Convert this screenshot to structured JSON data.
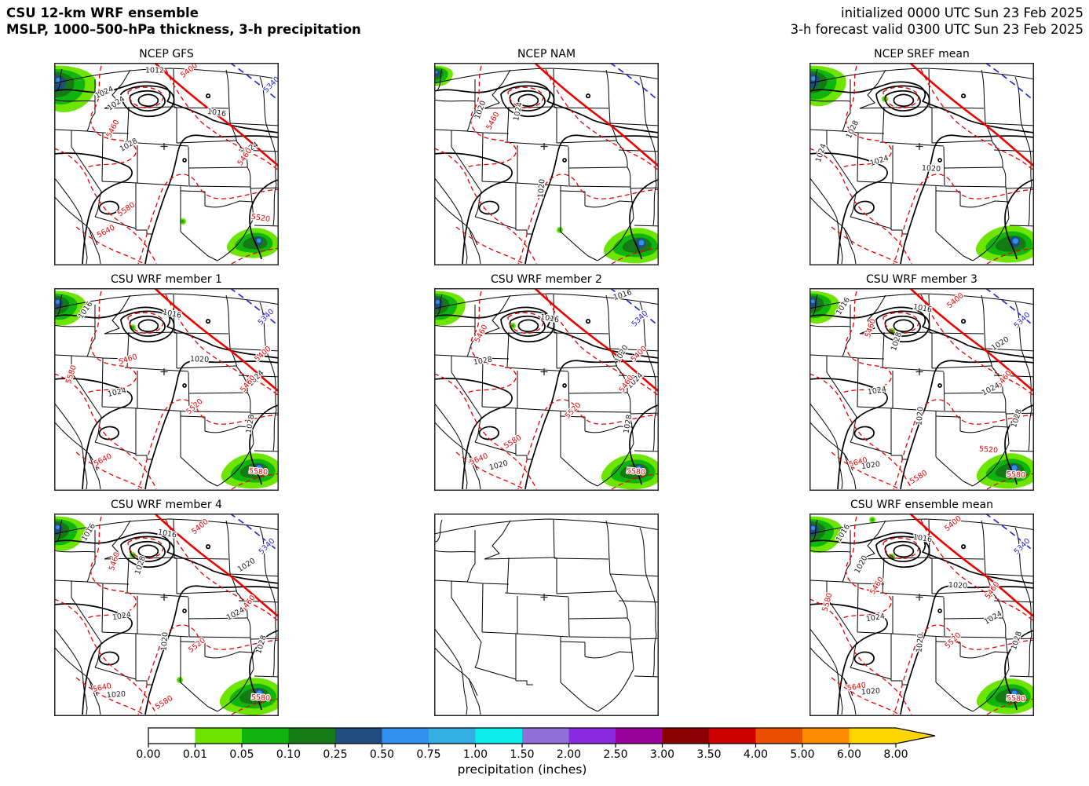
{
  "header": {
    "title_line1": "CSU 12-km WRF ensemble",
    "title_line2": "MSLP, 1000–500-hPa thickness, 3-h precipitation",
    "init_line": "initialized 0000 UTC Sun 23 Feb 2025",
    "valid_line": "3-h forecast valid 0300 UTC Sun 23 Feb 2025"
  },
  "label_colors": {
    "k": "#1a1a1a",
    "r": "#ee0000",
    "b": "#2222dd"
  },
  "panels": [
    {
      "id": "ncep-gfs",
      "title": "NCEP GFS",
      "blank": false,
      "precip": {
        "nw": 1.15,
        "se": 0.85,
        "se_pos": [
          254,
          228
        ],
        "specks": [
          [
            164,
            202
          ]
        ]
      },
      "labels": [
        [
          "1012",
          128,
          10,
          "k",
          0
        ],
        [
          "5400",
          172,
          10,
          "r",
          -38
        ],
        [
          "5340",
          277,
          28,
          "b",
          -45
        ],
        [
          "1024",
          64,
          38,
          "k",
          -25
        ],
        [
          "1024",
          79,
          52,
          "k",
          -35
        ],
        [
          "1016",
          207,
          64,
          "k",
          8
        ],
        [
          "5460",
          75,
          84,
          "r",
          -62
        ],
        [
          "1028",
          95,
          105,
          "k",
          -30
        ],
        [
          "1024",
          249,
          110,
          "k",
          -32
        ],
        [
          "5460",
          243,
          120,
          "r",
          -55
        ],
        [
          "5580",
          92,
          187,
          "r",
          -35
        ],
        [
          "5520",
          263,
          198,
          "r",
          8
        ],
        [
          "5640",
          66,
          215,
          "r",
          -28
        ]
      ]
    },
    {
      "id": "ncep-nam",
      "title": "NCEP NAM",
      "blank": false,
      "precip": {
        "nw": 0.5,
        "se": 1.0,
        "se_pos": [
          256,
          231
        ],
        "specks": [
          [
            160,
            213
          ]
        ]
      },
      "labels": [
        [
          "1020",
          59,
          60,
          "k",
          -70
        ],
        [
          "5460",
          75,
          74,
          "r",
          -62
        ],
        [
          "1024",
          107,
          62,
          "k",
          -78
        ],
        [
          "1020",
          137,
          160,
          "k",
          -85
        ]
      ]
    },
    {
      "id": "ncep-sref",
      "title": "NCEP SREF mean",
      "blank": false,
      "precip": {
        "nw": 1.0,
        "se": 1.05,
        "se_pos": [
          254,
          229
        ],
        "specks": [
          [
            96,
            46
          ]
        ]
      },
      "labels": [
        [
          "1028",
          55,
          85,
          "k",
          -65
        ],
        [
          "1024",
          15,
          115,
          "k",
          -72
        ],
        [
          "1024",
          89,
          125,
          "k",
          -18
        ],
        [
          "1020",
          155,
          135,
          "k",
          3
        ]
      ]
    },
    {
      "id": "csu-wrf-1",
      "title": "CSU WRF member 1",
      "blank": false,
      "precip": {
        "nw": 0.85,
        "se": 1.0,
        "se_pos": [
          253,
          231
        ],
        "specks": [
          [
            100,
            50
          ]
        ]
      },
      "labels": [
        [
          "1016",
          40,
          28,
          "k",
          -55
        ],
        [
          "1016",
          150,
          33,
          "k",
          12
        ],
        [
          "5340",
          270,
          37,
          "b",
          -45
        ],
        [
          "5400",
          266,
          84,
          "r",
          -42
        ],
        [
          "1020",
          185,
          91,
          "k",
          2
        ],
        [
          "5460",
          94,
          91,
          "r",
          -18
        ],
        [
          "5580",
          22,
          110,
          "r",
          -72
        ],
        [
          "1024",
          257,
          115,
          "k",
          -45
        ],
        [
          "5460",
          247,
          122,
          "r",
          -52
        ],
        [
          "1024",
          80,
          133,
          "k",
          -12
        ],
        [
          "5520",
          179,
          151,
          "r",
          -42
        ],
        [
          "1028",
          250,
          173,
          "k",
          -80
        ],
        [
          "5640",
          62,
          219,
          "r",
          -28
        ],
        [
          "5580",
          260,
          234,
          "r",
          5
        ]
      ]
    },
    {
      "id": "csu-wrf-2",
      "title": "CSU WRF member 2",
      "blank": false,
      "precip": {
        "nw": 0.85,
        "se": 1.0,
        "se_pos": [
          253,
          232
        ],
        "specks": [
          [
            100,
            48
          ]
        ]
      },
      "labels": [
        [
          "1016",
          240,
          9,
          "k",
          -18
        ],
        [
          "1016",
          147,
          39,
          "k",
          10
        ],
        [
          "5340",
          262,
          39,
          "b",
          -45
        ],
        [
          "5460",
          60,
          58,
          "r",
          -62
        ],
        [
          "1028",
          62,
          93,
          "k",
          -10
        ],
        [
          "1020",
          239,
          84,
          "k",
          -60
        ],
        [
          "5400",
          261,
          84,
          "r",
          -45
        ],
        [
          "1024",
          256,
          118,
          "k",
          -45
        ],
        [
          "5460",
          245,
          122,
          "r",
          -55
        ],
        [
          "5520",
          177,
          156,
          "r",
          -45
        ],
        [
          "1028",
          247,
          173,
          "k",
          -80
        ],
        [
          "5580",
          100,
          196,
          "r",
          -32
        ],
        [
          "5640",
          57,
          218,
          "r",
          -22
        ],
        [
          "1020",
          82,
          226,
          "k",
          -15
        ],
        [
          "5580",
          257,
          234,
          "r",
          5
        ]
      ]
    },
    {
      "id": "csu-wrf-3",
      "title": "CSU WRF member 3",
      "blank": false,
      "precip": {
        "nw": 0.8,
        "se": 1.0,
        "se_pos": [
          253,
          231
        ],
        "specks": [
          [
            105,
            55
          ]
        ]
      },
      "labels": [
        [
          "1016",
          43,
          23,
          "k",
          -58
        ],
        [
          "1016",
          144,
          26,
          "k",
          10
        ],
        [
          "5400",
          186,
          16,
          "r",
          -40
        ],
        [
          "5340",
          271,
          41,
          "b",
          -45
        ],
        [
          "5460",
          78,
          51,
          "r",
          -72
        ],
        [
          "1028",
          111,
          68,
          "k",
          -72
        ],
        [
          "1020",
          243,
          71,
          "k",
          -32
        ],
        [
          "5460",
          248,
          116,
          "r",
          -52
        ],
        [
          "1024",
          86,
          131,
          "k",
          -10
        ],
        [
          "1024",
          231,
          129,
          "k",
          -28
        ],
        [
          "1020",
          141,
          163,
          "k",
          -85
        ],
        [
          "1028",
          264,
          166,
          "k",
          -72
        ],
        [
          "5520",
          228,
          206,
          "r",
          5
        ],
        [
          "5640",
          62,
          222,
          "r",
          -15
        ],
        [
          "1020",
          78,
          226,
          "k",
          -8
        ],
        [
          "5580",
          139,
          241,
          "r",
          -32
        ],
        [
          "5580",
          263,
          238,
          "r",
          3
        ]
      ]
    },
    {
      "id": "csu-wrf-4",
      "title": "CSU WRF member 4",
      "blank": false,
      "precip": {
        "nw": 0.85,
        "se": 1.05,
        "se_pos": [
          253,
          231
        ],
        "specks": [
          [
            100,
            53
          ],
          [
            160,
            212
          ]
        ]
      },
      "labels": [
        [
          "1016",
          44,
          24,
          "k",
          -58
        ],
        [
          "1016",
          144,
          26,
          "k",
          10
        ],
        [
          "5400",
          186,
          17,
          "r",
          -40
        ],
        [
          "5340",
          271,
          42,
          "b",
          -45
        ],
        [
          "5460",
          77,
          61,
          "r",
          -72
        ],
        [
          "1028",
          110,
          66,
          "k",
          -72
        ],
        [
          "1020",
          245,
          66,
          "k",
          -32
        ],
        [
          "5460",
          247,
          115,
          "r",
          -52
        ],
        [
          "1024",
          86,
          131,
          "k",
          -10
        ],
        [
          "1024",
          231,
          128,
          "k",
          -28
        ],
        [
          "1020",
          141,
          163,
          "k",
          -85
        ],
        [
          "1028",
          264,
          167,
          "k",
          -72
        ],
        [
          "5520",
          182,
          168,
          "r",
          -38
        ],
        [
          "5640",
          61,
          222,
          "r",
          -12
        ],
        [
          "1020",
          79,
          231,
          "k",
          -5
        ],
        [
          "5580",
          140,
          241,
          "r",
          -32
        ],
        [
          "5580",
          263,
          235,
          "r",
          3
        ]
      ]
    },
    {
      "id": "csu-wrf-5",
      "title": "",
      "blank": true,
      "precip": null,
      "labels": []
    },
    {
      "id": "csu-wrf-mean",
      "title": "CSU WRF ensemble mean",
      "blank": false,
      "precip": {
        "nw": 0.9,
        "se": 1.0,
        "se_pos": [
          253,
          231
        ],
        "specks": [
          [
            80,
            8
          ],
          [
            105,
            55
          ]
        ]
      },
      "labels": [
        [
          "1016",
          43,
          25,
          "k",
          -58
        ],
        [
          "1016",
          144,
          32,
          "k",
          8
        ],
        [
          "5400",
          183,
          13,
          "r",
          -40
        ],
        [
          "5340",
          271,
          42,
          "b",
          -45
        ],
        [
          "1020",
          66,
          65,
          "k",
          -62
        ],
        [
          "5460",
          86,
          92,
          "r",
          -58
        ],
        [
          "1020",
          189,
          92,
          "k",
          3
        ],
        [
          "5460",
          233,
          98,
          "r",
          -55
        ],
        [
          "5580",
          23,
          113,
          "r",
          -75
        ],
        [
          "1024",
          84,
          133,
          "k",
          -10
        ],
        [
          "1024",
          234,
          133,
          "k",
          -30
        ],
        [
          "5520",
          183,
          162,
          "r",
          -45
        ],
        [
          "1020",
          141,
          165,
          "k",
          -85
        ],
        [
          "1028",
          264,
          162,
          "k",
          -72
        ],
        [
          "5640",
          60,
          221,
          "r",
          -10
        ],
        [
          "1020",
          78,
          227,
          "k",
          -5
        ],
        [
          "5580",
          263,
          236,
          "r",
          3
        ]
      ]
    }
  ],
  "colorbar": {
    "label": "precipitation (inches)",
    "ticks": [
      "0.00",
      "0.01",
      "0.05",
      "0.10",
      "0.25",
      "0.50",
      "0.75",
      "1.00",
      "1.50",
      "2.00",
      "2.50",
      "3.00",
      "3.50",
      "4.00",
      "5.00",
      "6.00",
      "8.00"
    ],
    "colors": [
      "#ffffff",
      "#6de500",
      "#0fb50f",
      "#147a14",
      "#1f4d7e",
      "#3090f0",
      "#35aee2",
      "#0ceeee",
      "#9070d8",
      "#8a2be2",
      "#990099",
      "#8b0000",
      "#d00000",
      "#ea4f00",
      "#ff8c00",
      "#ffd500"
    ],
    "extend_color": "#ffd500"
  },
  "chart_data": {
    "type": "heatmap",
    "figure": "3x3 grid of weather model forecast maps over the west-central United States with filled 3-h precipitation, solid black MSLP contours, dashed red 1000-500-hPa thickness contours (5400 m thick solid red, 5340 m dashed blue)",
    "panel_titles": [
      "NCEP GFS",
      "NCEP NAM",
      "NCEP SREF mean",
      "CSU WRF member 1",
      "CSU WRF member 2",
      "CSU WRF member 3",
      "CSU WRF member 4",
      "",
      "CSU WRF ensemble mean"
    ],
    "blank_panels": [
      "row 3, column 2 (base map only, no fields)"
    ],
    "initialized": "0000 UTC Sun 23 Feb 2025",
    "valid": "0300 UTC Sun 23 Feb 2025",
    "forecast_hour": 3,
    "fields": {
      "mslp": {
        "units": "hPa",
        "style": "solid black contours",
        "interval": 4,
        "labeled_values": [
          1012,
          1016,
          1020,
          1024,
          1028
        ]
      },
      "thickness_1000_500": {
        "units": "m",
        "style": "dashed red contours; 5400 thick solid red; 5340 dashed blue",
        "interval": 60,
        "labeled_values": [
          5340,
          5400,
          5460,
          5520,
          5580,
          5640
        ]
      },
      "precip_3h": {
        "units": "inches",
        "style": "filled contours",
        "boundaries": [
          0.0,
          0.01,
          0.05,
          0.1,
          0.25,
          0.5,
          0.75,
          1.0,
          1.5,
          2.0,
          2.5,
          3.0,
          3.5,
          4.0,
          5.0,
          6.0,
          8.0
        ],
        "extend": "max",
        "notes": "precipitation maxima in the northwest (Pacific Northwest) and southeast (Texas Gulf coast) corners of each non-blank panel"
      }
    },
    "legend_position": "bottom"
  }
}
